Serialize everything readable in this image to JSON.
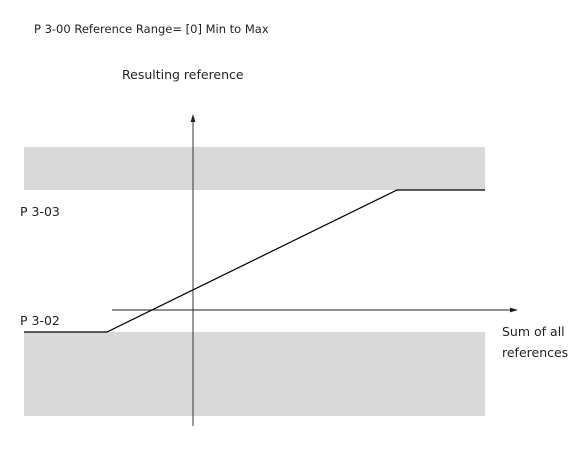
{
  "diagram": {
    "title": "P 3-00 Reference Range= [0] Min to Max",
    "y_axis_label": "Resulting reference",
    "x_axis_label_line1": "Sum of all",
    "x_axis_label_line2": "references",
    "max_label": "P 3-03",
    "min_label": "P 3-02"
  },
  "colors": {
    "band": "#d9d9d9",
    "line": "#000000",
    "text": "#231f20"
  }
}
